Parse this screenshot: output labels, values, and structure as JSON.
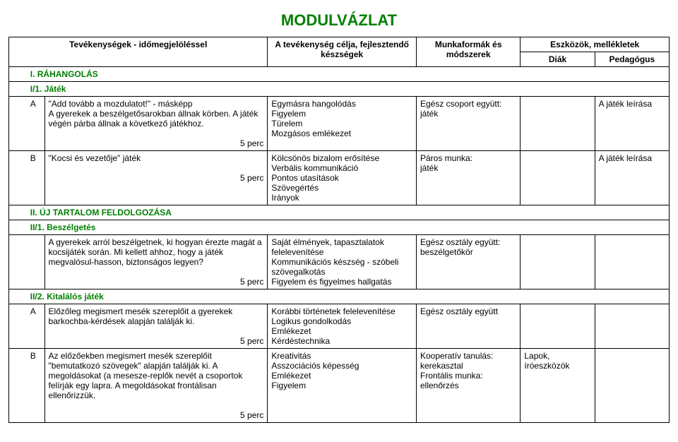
{
  "title": "MODULVÁZLAT",
  "header": {
    "activities": "Tevékenységek - időmegjelöléssel",
    "goal": "A tevékenység célja, fejlesztendő készségek",
    "forms": "Munkaformák és módszerek",
    "tools": "Eszközök, mellékletek",
    "diak": "Diák",
    "ped": "Pedagógus"
  },
  "s1": {
    "title": "I. RÁHANGOLÁS"
  },
  "s1_1": {
    "title": "I/1. Játék"
  },
  "rowA": {
    "code": "A",
    "act": "\"Add tovább a mozdulatot!\" - másképp\nA gyerekek a beszélgetősarokban állnak körben. A játék végén párba állnak a következő játékhoz.",
    "time": "5 perc",
    "goal": "Egymásra hangolódás\nFigyelem\nTürelem\nMozgásos emlékezet",
    "form": "Egész csoport együtt:\njáték",
    "ped": "A játék leírása"
  },
  "rowB": {
    "code": "B",
    "act": "\"Kocsi és vezetője\" játék",
    "time": "5 perc",
    "goal": "Kölcsönös bizalom erősítése\nVerbális kommunikáció\nPontos utasítások\nSzövegértés\nIrányok",
    "form": "Páros munka:\njáték",
    "ped": "A játék leírása"
  },
  "s2": {
    "title": "II. ÚJ TARTALOM FELDOLGOZÁSA"
  },
  "s2_1": {
    "title": "II/1. Beszélgetés"
  },
  "rowC": {
    "act": "A gyerekek arról beszélgetnek, ki hogyan érezte magát a kocsijáték során. Mi kellett ahhoz, hogy a játék megvalósul-hasson, biztonságos legyen?",
    "time": "5 perc",
    "goal": "Saját élmények, tapasztalatok felelevenítése\nKommunikációs készség - szóbeli szövegalkotás\nFigyelem és figyelmes hallgatás",
    "form": "Egész osztály együtt:\nbeszélgetőkör"
  },
  "s2_2": {
    "title": "II/2. Kitalálós játék"
  },
  "rowD": {
    "code": "A",
    "act": "Előzőleg megismert mesék szereplőit a gyerekek barkochba-kérdések alapján találják ki.",
    "time": "5 perc",
    "goal": "Korábbi történetek felelevenítése\nLogikus gondolkodás\nEmlékezet\nKérdéstechnika",
    "form": "Egész osztály együtt"
  },
  "rowE": {
    "code": "B",
    "act": "Az előzőekben megismert mesék szereplőit \"bemutatkozó szövegek\" alapján találják ki. A megoldásokat (a mesesze-replők nevét a csoportok felírják egy lapra. A megoldásokat frontálisan ellenőrizzük.",
    "time": "5 perc",
    "goal": "Kreativitás\nAsszociációs képesség\nEmlékezet\nFigyelem",
    "form": "Kooperatív tanulás:\nkerekasztal\nFrontális munka:\nellenőrzés",
    "diak": "Lapok,\níróeszközök"
  }
}
